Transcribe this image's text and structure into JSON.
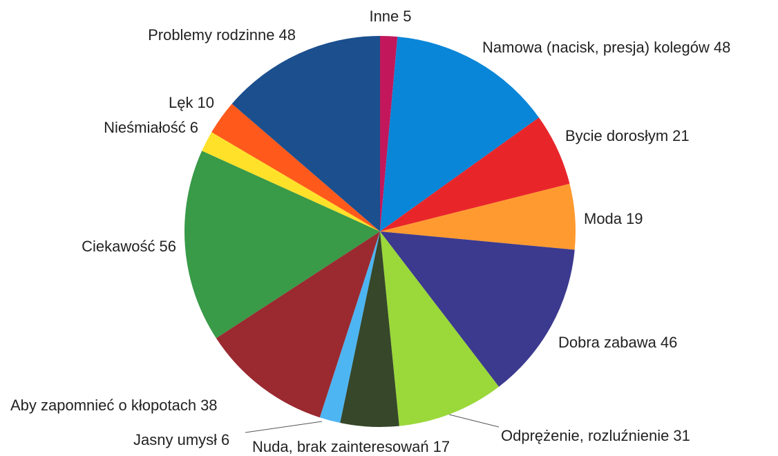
{
  "chart_data": {
    "type": "pie",
    "categories": [
      "Inne",
      "Namowa (nacisk, presja) kolegów",
      "Bycie dorosłym",
      "Moda",
      "Dobra zabawa",
      "Odprężenie, rozluźnienie",
      "Nuda, brak zainteresowań",
      "Jasny umysł",
      "Aby zapomnieć o kłopotach",
      "Ciekawość",
      "Nieśmiałość",
      "Lęk",
      "Problemy rodzinne"
    ],
    "values": [
      5,
      48,
      21,
      19,
      46,
      31,
      17,
      6,
      38,
      56,
      6,
      10,
      48
    ],
    "colors": [
      "#c2185b",
      "#0a86d8",
      "#e8262a",
      "#ff9a30",
      "#3c3a8e",
      "#9bd83a",
      "#36472a",
      "#4db5f2",
      "#9a2a30",
      "#399a48",
      "#ffe12a",
      "#ff5a1c",
      "#1b4f8e"
    ]
  }
}
